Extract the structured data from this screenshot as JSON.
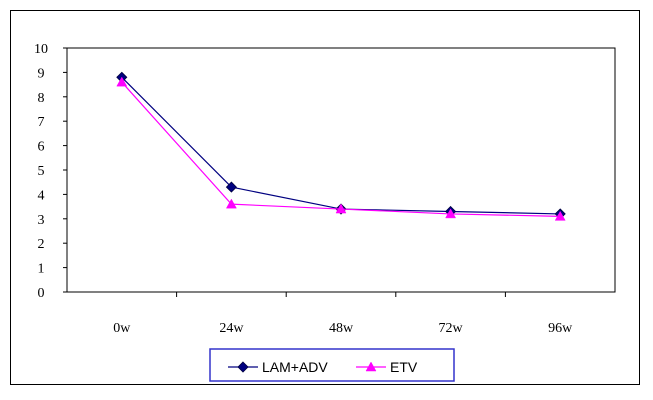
{
  "chart_data": {
    "type": "line",
    "categories": [
      "0w",
      "24w",
      "48w",
      "72w",
      "96w"
    ],
    "ylim": [
      0,
      10
    ],
    "yticks": [
      "0",
      "1",
      "2",
      "3",
      "4",
      "5",
      "6",
      "7",
      "8",
      "9",
      "10"
    ],
    "grid": false,
    "legend_position": "bottom",
    "series": [
      {
        "name": "LAM+ADV",
        "color": "#000080",
        "marker": "diamond",
        "values": [
          8.8,
          4.3,
          3.4,
          3.3,
          3.2
        ]
      },
      {
        "name": "ETV",
        "color": "#ff00ff",
        "marker": "triangle",
        "values": [
          8.6,
          3.6,
          3.4,
          3.2,
          3.1
        ]
      }
    ]
  }
}
